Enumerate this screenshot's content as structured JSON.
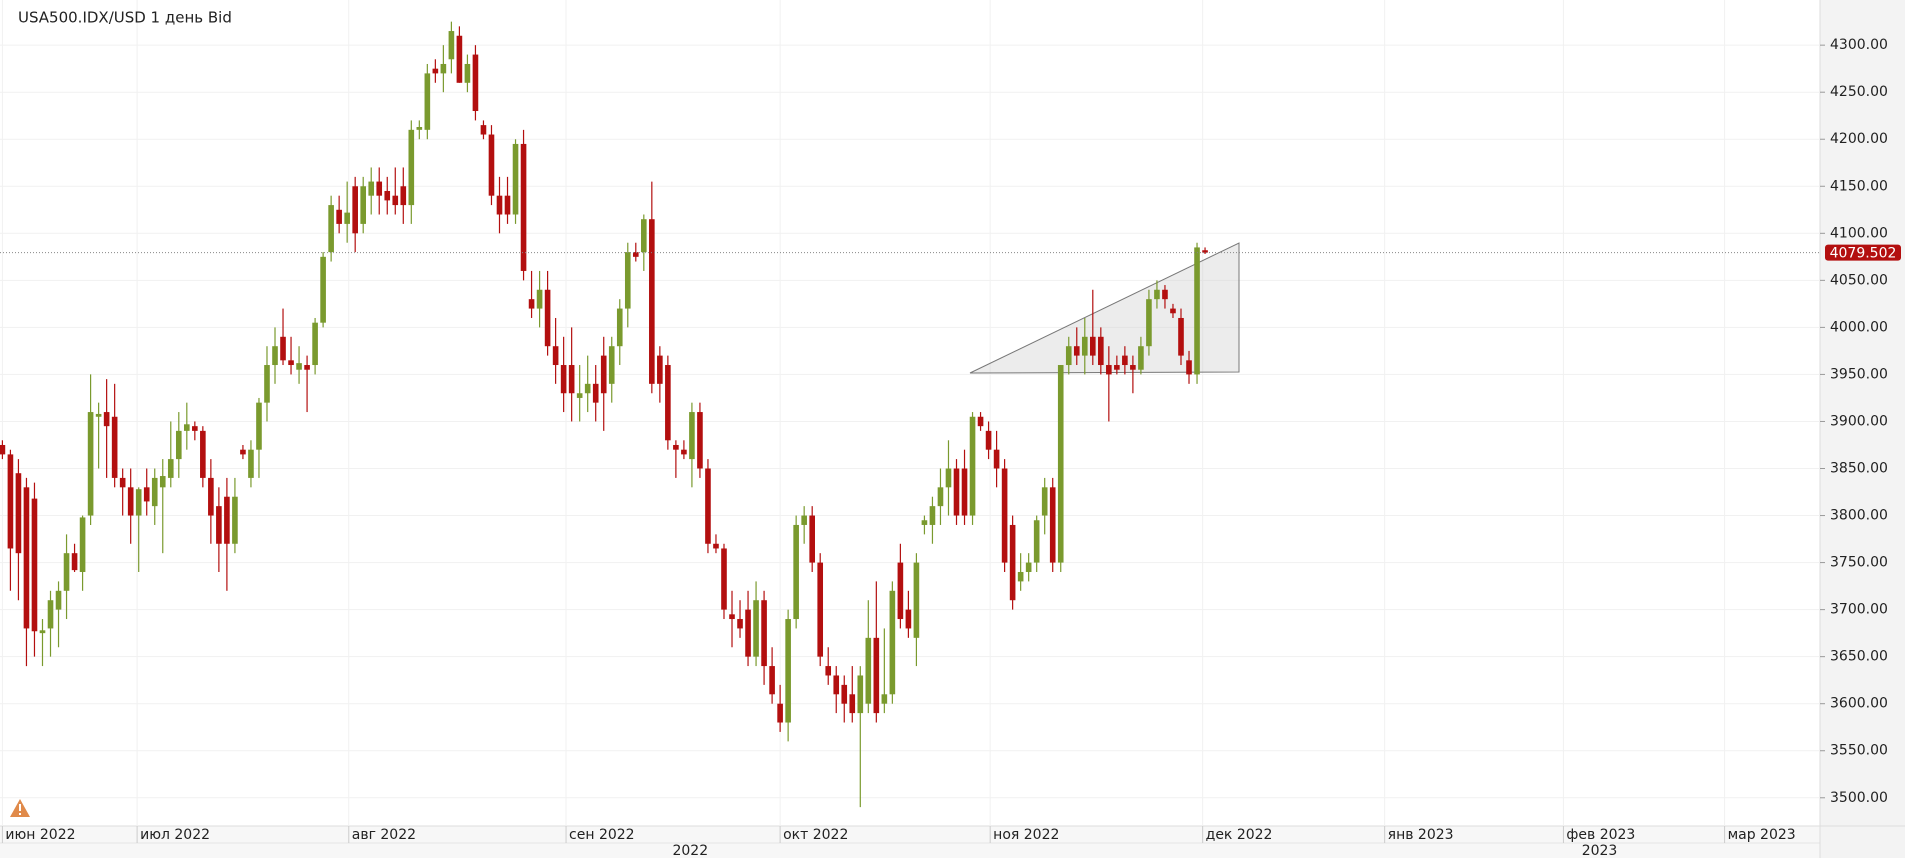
{
  "chart_data": {
    "type": "candlestick",
    "title": "USA500.IDX/USD  1 день Bid",
    "up_color": "#7a9a2e",
    "down_color": "#b30f0f",
    "candles": [
      {
        "o": 3875,
        "h": 3880,
        "l": 3860,
        "c": 3865
      },
      {
        "o": 3865,
        "h": 3870,
        "l": 3720,
        "c": 3765
      },
      {
        "o": 3845,
        "h": 3860,
        "l": 3710,
        "c": 3760
      },
      {
        "o": 3830,
        "h": 3840,
        "l": 3640,
        "c": 3680
      },
      {
        "o": 3818,
        "h": 3835,
        "l": 3650,
        "c": 3677
      },
      {
        "o": 3675,
        "h": 3690,
        "l": 3640,
        "c": 3678
      },
      {
        "o": 3680,
        "h": 3720,
        "l": 3650,
        "c": 3710
      },
      {
        "o": 3700,
        "h": 3730,
        "l": 3660,
        "c": 3720
      },
      {
        "o": 3720,
        "h": 3780,
        "l": 3690,
        "c": 3760
      },
      {
        "o": 3760,
        "h": 3770,
        "l": 3740,
        "c": 3742
      },
      {
        "o": 3740,
        "h": 3800,
        "l": 3720,
        "c": 3798
      },
      {
        "o": 3800,
        "h": 3950,
        "l": 3790,
        "c": 3910
      },
      {
        "o": 3905,
        "h": 3920,
        "l": 3850,
        "c": 3908
      },
      {
        "o": 3910,
        "h": 3945,
        "l": 3840,
        "c": 3895
      },
      {
        "o": 3905,
        "h": 3940,
        "l": 3830,
        "c": 3840
      },
      {
        "o": 3840,
        "h": 3850,
        "l": 3800,
        "c": 3830
      },
      {
        "o": 3830,
        "h": 3850,
        "l": 3770,
        "c": 3800
      },
      {
        "o": 3800,
        "h": 3830,
        "l": 3740,
        "c": 3828
      },
      {
        "o": 3830,
        "h": 3850,
        "l": 3800,
        "c": 3815
      },
      {
        "o": 3810,
        "h": 3850,
        "l": 3790,
        "c": 3840
      },
      {
        "o": 3830,
        "h": 3860,
        "l": 3760,
        "c": 3842
      },
      {
        "o": 3840,
        "h": 3900,
        "l": 3830,
        "c": 3860
      },
      {
        "o": 3860,
        "h": 3910,
        "l": 3840,
        "c": 3890
      },
      {
        "o": 3890,
        "h": 3920,
        "l": 3870,
        "c": 3897
      },
      {
        "o": 3895,
        "h": 3900,
        "l": 3880,
        "c": 3890
      },
      {
        "o": 3890,
        "h": 3895,
        "l": 3830,
        "c": 3840
      },
      {
        "o": 3840,
        "h": 3860,
        "l": 3770,
        "c": 3800
      },
      {
        "o": 3810,
        "h": 3830,
        "l": 3740,
        "c": 3770
      },
      {
        "o": 3820,
        "h": 3840,
        "l": 3720,
        "c": 3770
      },
      {
        "o": 3770,
        "h": 3840,
        "l": 3760,
        "c": 3820
      },
      {
        "o": 3870,
        "h": 3875,
        "l": 3860,
        "c": 3865
      },
      {
        "o": 3840,
        "h": 3880,
        "l": 3830,
        "c": 3870
      },
      {
        "o": 3870,
        "h": 3925,
        "l": 3840,
        "c": 3920
      },
      {
        "o": 3920,
        "h": 3980,
        "l": 3900,
        "c": 3960
      },
      {
        "o": 3960,
        "h": 4000,
        "l": 3940,
        "c": 3980
      },
      {
        "o": 3990,
        "h": 4020,
        "l": 3960,
        "c": 3965
      },
      {
        "o": 3965,
        "h": 3990,
        "l": 3950,
        "c": 3960
      },
      {
        "o": 3955,
        "h": 3980,
        "l": 3940,
        "c": 3962
      },
      {
        "o": 3960,
        "h": 3970,
        "l": 3910,
        "c": 3955
      },
      {
        "o": 3960,
        "h": 4010,
        "l": 3950,
        "c": 4005
      },
      {
        "o": 4005,
        "h": 4080,
        "l": 4000,
        "c": 4075
      },
      {
        "o": 4080,
        "h": 4140,
        "l": 4070,
        "c": 4130
      },
      {
        "o": 4125,
        "h": 4140,
        "l": 4100,
        "c": 4110
      },
      {
        "o": 4110,
        "h": 4155,
        "l": 4090,
        "c": 4122
      },
      {
        "o": 4150,
        "h": 4160,
        "l": 4080,
        "c": 4100
      },
      {
        "o": 4110,
        "h": 4160,
        "l": 4100,
        "c": 4150
      },
      {
        "o": 4140,
        "h": 4170,
        "l": 4120,
        "c": 4155
      },
      {
        "o": 4155,
        "h": 4170,
        "l": 4120,
        "c": 4140
      },
      {
        "o": 4145,
        "h": 4160,
        "l": 4120,
        "c": 4135
      },
      {
        "o": 4140,
        "h": 4170,
        "l": 4120,
        "c": 4130
      },
      {
        "o": 4150,
        "h": 4170,
        "l": 4110,
        "c": 4130
      },
      {
        "o": 4130,
        "h": 4220,
        "l": 4110,
        "c": 4210
      },
      {
        "o": 4210,
        "h": 4220,
        "l": 4200,
        "c": 4213
      },
      {
        "o": 4210,
        "h": 4280,
        "l": 4200,
        "c": 4270
      },
      {
        "o": 4275,
        "h": 4285,
        "l": 4260,
        "c": 4270
      },
      {
        "o": 4270,
        "h": 4300,
        "l": 4250,
        "c": 4280
      },
      {
        "o": 4285,
        "h": 4325,
        "l": 4270,
        "c": 4315
      },
      {
        "o": 4310,
        "h": 4320,
        "l": 4260,
        "c": 4260
      },
      {
        "o": 4260,
        "h": 4290,
        "l": 4250,
        "c": 4280
      },
      {
        "o": 4290,
        "h": 4300,
        "l": 4220,
        "c": 4230
      },
      {
        "o": 4215,
        "h": 4220,
        "l": 4200,
        "c": 4205
      },
      {
        "o": 4205,
        "h": 4215,
        "l": 4130,
        "c": 4140
      },
      {
        "o": 4140,
        "h": 4160,
        "l": 4100,
        "c": 4120
      },
      {
        "o": 4140,
        "h": 4160,
        "l": 4110,
        "c": 4120
      },
      {
        "o": 4120,
        "h": 4200,
        "l": 4110,
        "c": 4195
      },
      {
        "o": 4195,
        "h": 4210,
        "l": 4050,
        "c": 4060
      },
      {
        "o": 4030,
        "h": 4060,
        "l": 4010,
        "c": 4020
      },
      {
        "o": 4020,
        "h": 4060,
        "l": 4000,
        "c": 4040
      },
      {
        "o": 4040,
        "h": 4060,
        "l": 3970,
        "c": 3980
      },
      {
        "o": 3980,
        "h": 4010,
        "l": 3940,
        "c": 3960
      },
      {
        "o": 3960,
        "h": 3990,
        "l": 3910,
        "c": 3930
      },
      {
        "o": 3960,
        "h": 4000,
        "l": 3900,
        "c": 3930
      },
      {
        "o": 3925,
        "h": 3960,
        "l": 3900,
        "c": 3930
      },
      {
        "o": 3930,
        "h": 3970,
        "l": 3910,
        "c": 3940
      },
      {
        "o": 3940,
        "h": 3960,
        "l": 3900,
        "c": 3920
      },
      {
        "o": 3970,
        "h": 3990,
        "l": 3890,
        "c": 3930
      },
      {
        "o": 3940,
        "h": 3990,
        "l": 3920,
        "c": 3980
      },
      {
        "o": 3980,
        "h": 4030,
        "l": 3960,
        "c": 4020
      },
      {
        "o": 4020,
        "h": 4090,
        "l": 4000,
        "c": 4080
      },
      {
        "o": 4080,
        "h": 4090,
        "l": 4070,
        "c": 4075
      },
      {
        "o": 4080,
        "h": 4120,
        "l": 4060,
        "c": 4115
      },
      {
        "o": 4115,
        "h": 4155,
        "l": 3930,
        "c": 3940
      },
      {
        "o": 3970,
        "h": 3980,
        "l": 3920,
        "c": 3940
      },
      {
        "o": 3960,
        "h": 3970,
        "l": 3870,
        "c": 3880
      },
      {
        "o": 3875,
        "h": 3880,
        "l": 3840,
        "c": 3870
      },
      {
        "o": 3870,
        "h": 3880,
        "l": 3860,
        "c": 3865
      },
      {
        "o": 3860,
        "h": 3920,
        "l": 3830,
        "c": 3910
      },
      {
        "o": 3910,
        "h": 3920,
        "l": 3840,
        "c": 3850
      },
      {
        "o": 3850,
        "h": 3860,
        "l": 3760,
        "c": 3770
      },
      {
        "o": 3770,
        "h": 3780,
        "l": 3760,
        "c": 3765
      },
      {
        "o": 3765,
        "h": 3770,
        "l": 3690,
        "c": 3700
      },
      {
        "o": 3695,
        "h": 3720,
        "l": 3660,
        "c": 3690
      },
      {
        "o": 3690,
        "h": 3710,
        "l": 3670,
        "c": 3680
      },
      {
        "o": 3700,
        "h": 3720,
        "l": 3640,
        "c": 3650
      },
      {
        "o": 3650,
        "h": 3730,
        "l": 3640,
        "c": 3710
      },
      {
        "o": 3710,
        "h": 3720,
        "l": 3620,
        "c": 3640
      },
      {
        "o": 3640,
        "h": 3660,
        "l": 3600,
        "c": 3610
      },
      {
        "o": 3600,
        "h": 3620,
        "l": 3570,
        "c": 3580
      },
      {
        "o": 3580,
        "h": 3700,
        "l": 3560,
        "c": 3690
      },
      {
        "o": 3690,
        "h": 3800,
        "l": 3680,
        "c": 3790
      },
      {
        "o": 3790,
        "h": 3810,
        "l": 3770,
        "c": 3800
      },
      {
        "o": 3800,
        "h": 3810,
        "l": 3740,
        "c": 3750
      },
      {
        "o": 3750,
        "h": 3760,
        "l": 3640,
        "c": 3650
      },
      {
        "o": 3640,
        "h": 3660,
        "l": 3620,
        "c": 3630
      },
      {
        "o": 3630,
        "h": 3640,
        "l": 3590,
        "c": 3610
      },
      {
        "o": 3620,
        "h": 3630,
        "l": 3580,
        "c": 3600
      },
      {
        "o": 3610,
        "h": 3640,
        "l": 3580,
        "c": 3590
      },
      {
        "o": 3590,
        "h": 3640,
        "l": 3490,
        "c": 3630
      },
      {
        "o": 3600,
        "h": 3710,
        "l": 3590,
        "c": 3670
      },
      {
        "o": 3670,
        "h": 3730,
        "l": 3580,
        "c": 3590
      },
      {
        "o": 3600,
        "h": 3680,
        "l": 3590,
        "c": 3610
      },
      {
        "o": 3610,
        "h": 3730,
        "l": 3600,
        "c": 3720
      },
      {
        "o": 3750,
        "h": 3770,
        "l": 3680,
        "c": 3690
      },
      {
        "o": 3700,
        "h": 3720,
        "l": 3670,
        "c": 3680
      },
      {
        "o": 3670,
        "h": 3760,
        "l": 3640,
        "c": 3750
      },
      {
        "o": 3790,
        "h": 3800,
        "l": 3780,
        "c": 3795
      },
      {
        "o": 3790,
        "h": 3820,
        "l": 3770,
        "c": 3810
      },
      {
        "o": 3810,
        "h": 3850,
        "l": 3790,
        "c": 3830
      },
      {
        "o": 3830,
        "h": 3880,
        "l": 3800,
        "c": 3850
      },
      {
        "o": 3850,
        "h": 3860,
        "l": 3790,
        "c": 3800
      },
      {
        "o": 3850,
        "h": 3870,
        "l": 3790,
        "c": 3800
      },
      {
        "o": 3800,
        "h": 3910,
        "l": 3790,
        "c": 3905
      },
      {
        "o": 3905,
        "h": 3910,
        "l": 3890,
        "c": 3895
      },
      {
        "o": 3890,
        "h": 3900,
        "l": 3860,
        "c": 3870
      },
      {
        "o": 3870,
        "h": 3890,
        "l": 3830,
        "c": 3850
      },
      {
        "o": 3850,
        "h": 3860,
        "l": 3740,
        "c": 3750
      },
      {
        "o": 3790,
        "h": 3800,
        "l": 3700,
        "c": 3710
      },
      {
        "o": 3730,
        "h": 3760,
        "l": 3720,
        "c": 3740
      },
      {
        "o": 3740,
        "h": 3760,
        "l": 3730,
        "c": 3750
      },
      {
        "o": 3750,
        "h": 3800,
        "l": 3740,
        "c": 3795
      },
      {
        "o": 3800,
        "h": 3840,
        "l": 3780,
        "c": 3830
      },
      {
        "o": 3830,
        "h": 3840,
        "l": 3740,
        "c": 3750
      },
      {
        "o": 3750,
        "h": 3960,
        "l": 3740,
        "c": 3960
      },
      {
        "o": 3960,
        "h": 3990,
        "l": 3950,
        "c": 3980
      },
      {
        "o": 3980,
        "h": 4000,
        "l": 3960,
        "c": 3970
      },
      {
        "o": 3970,
        "h": 4010,
        "l": 3950,
        "c": 3990
      },
      {
        "o": 3990,
        "h": 4040,
        "l": 3960,
        "c": 3970
      },
      {
        "o": 3990,
        "h": 4000,
        "l": 3950,
        "c": 3960
      },
      {
        "o": 3960,
        "h": 3980,
        "l": 3900,
        "c": 3950
      },
      {
        "o": 3960,
        "h": 3970,
        "l": 3950,
        "c": 3955
      },
      {
        "o": 3970,
        "h": 3980,
        "l": 3950,
        "c": 3960
      },
      {
        "o": 3960,
        "h": 3970,
        "l": 3930,
        "c": 3955
      },
      {
        "o": 3955,
        "h": 3990,
        "l": 3950,
        "c": 3980
      },
      {
        "o": 3980,
        "h": 4040,
        "l": 3970,
        "c": 4030
      },
      {
        "o": 4030,
        "h": 4050,
        "l": 4020,
        "c": 4040
      },
      {
        "o": 4040,
        "h": 4045,
        "l": 4020,
        "c": 4030
      },
      {
        "o": 4020,
        "h": 4025,
        "l": 4010,
        "c": 4015
      },
      {
        "o": 4010,
        "h": 4020,
        "l": 3960,
        "c": 3970
      },
      {
        "o": 3965,
        "h": 3975,
        "l": 3940,
        "c": 3950
      },
      {
        "o": 3950,
        "h": 4090,
        "l": 3940,
        "c": 4085
      },
      {
        "o": 4082,
        "h": 4085,
        "l": 4078,
        "c": 4079.502
      }
    ],
    "last_price": 4079.502,
    "xlim": [
      -0.3,
      226.7
    ],
    "xticks": [
      {
        "value": 0,
        "label": "июн 2022"
      },
      {
        "value": 16.8,
        "label": "июл 2022"
      },
      {
        "value": 43.2,
        "label": "авг 2022"
      },
      {
        "value": 70.3,
        "label": "сен 2022"
      },
      {
        "value": 97,
        "label": "окт 2022"
      },
      {
        "value": 123.2,
        "label": "ноя 2022"
      },
      {
        "value": 149.7,
        "label": "дек 2022"
      },
      {
        "value": 172.4,
        "label": "янв 2023"
      },
      {
        "value": 194.7,
        "label": "фев 2023"
      },
      {
        "value": 214.8,
        "label": "мар 2023"
      }
    ],
    "year_labels": [
      {
        "value": 85.8,
        "label": "2022"
      },
      {
        "value": 199.2,
        "label": "2023"
      }
    ],
    "ylim": [
      3470,
      4348
    ],
    "yticks": [
      {
        "value": 3500,
        "label": "3500.00"
      },
      {
        "value": 3550,
        "label": "3550.00"
      },
      {
        "value": 3600,
        "label": "3600.00"
      },
      {
        "value": 3650,
        "label": "3650.00"
      },
      {
        "value": 3700,
        "label": "3700.00"
      },
      {
        "value": 3750,
        "label": "3750.00"
      },
      {
        "value": 3800,
        "label": "3800.00"
      },
      {
        "value": 3850,
        "label": "3850.00"
      },
      {
        "value": 3900,
        "label": "3900.00"
      },
      {
        "value": 3950,
        "label": "3950.00"
      },
      {
        "value": 4000,
        "label": "4000.00"
      },
      {
        "value": 4050,
        "label": "4050.00"
      },
      {
        "value": 4100,
        "label": "4100.00"
      },
      {
        "value": 4150,
        "label": "4150.00"
      },
      {
        "value": 4200,
        "label": "4200.00"
      },
      {
        "value": 4250,
        "label": "4250.00"
      },
      {
        "value": 4300,
        "label": "4300.00"
      }
    ],
    "grid": true
  }
}
